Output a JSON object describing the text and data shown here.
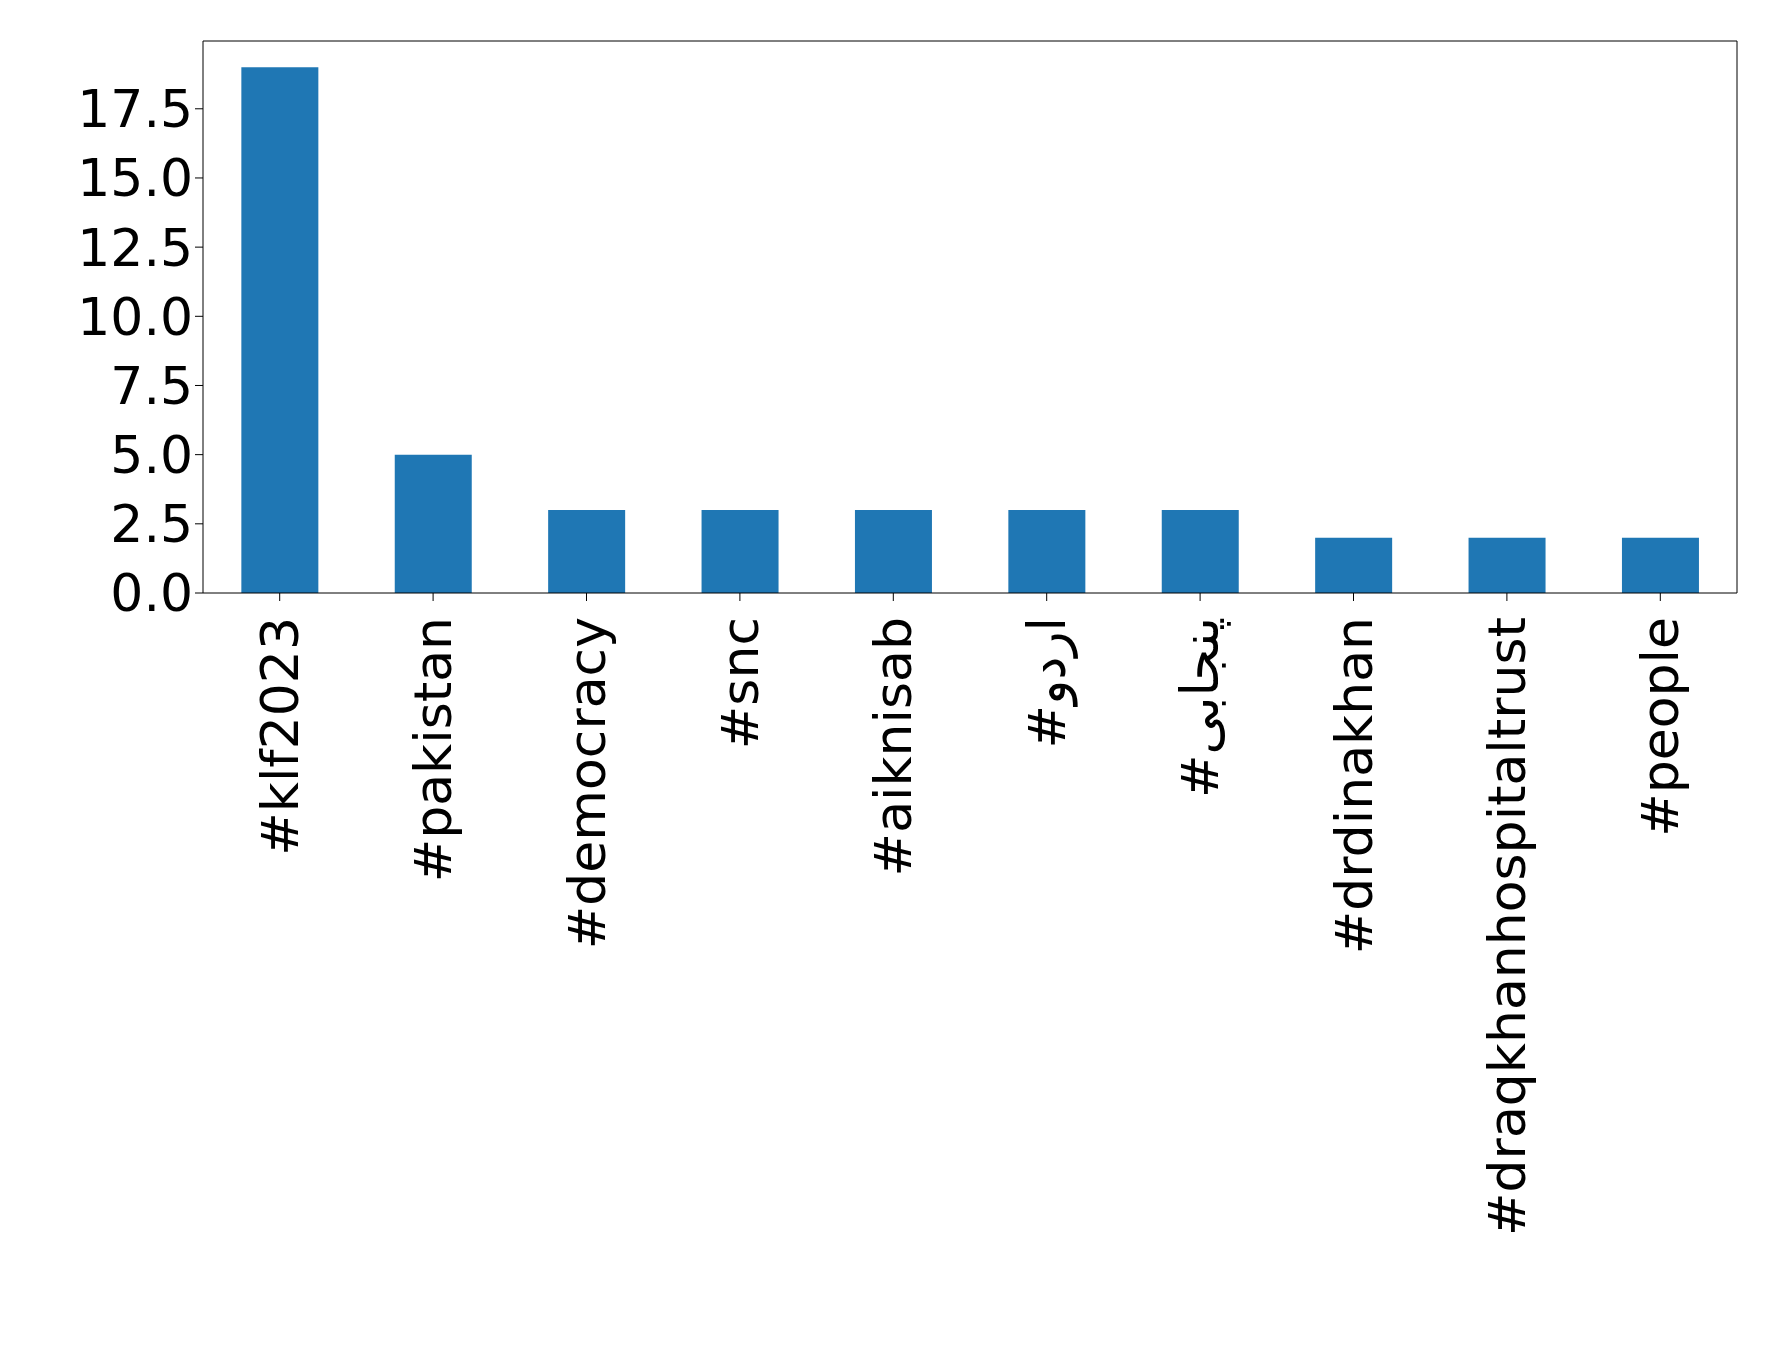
{
  "chart_data": {
    "type": "bar",
    "categories": [
      "#klf2023",
      "#pakistan",
      "#democracy",
      "#snc",
      "#aiknisab",
      "#اردو",
      "#پنجابی",
      "#drdinakhan",
      "#draqkhanhospitaltrust",
      "#people"
    ],
    "values": [
      19,
      5,
      3,
      3,
      3,
      3,
      3,
      2,
      2,
      2
    ],
    "color": "#1f77b4",
    "ylim": [
      0,
      19.95
    ],
    "yticks": [
      {
        "value": 0,
        "label": "0.0"
      },
      {
        "value": 2.5,
        "label": "2.5"
      },
      {
        "value": 5,
        "label": "5.0"
      },
      {
        "value": 7.5,
        "label": "7.5"
      },
      {
        "value": 10,
        "label": "10.0"
      },
      {
        "value": 12.5,
        "label": "12.5"
      },
      {
        "value": 15,
        "label": "15.0"
      },
      {
        "value": 17.5,
        "label": "17.5"
      }
    ],
    "grid": false
  }
}
